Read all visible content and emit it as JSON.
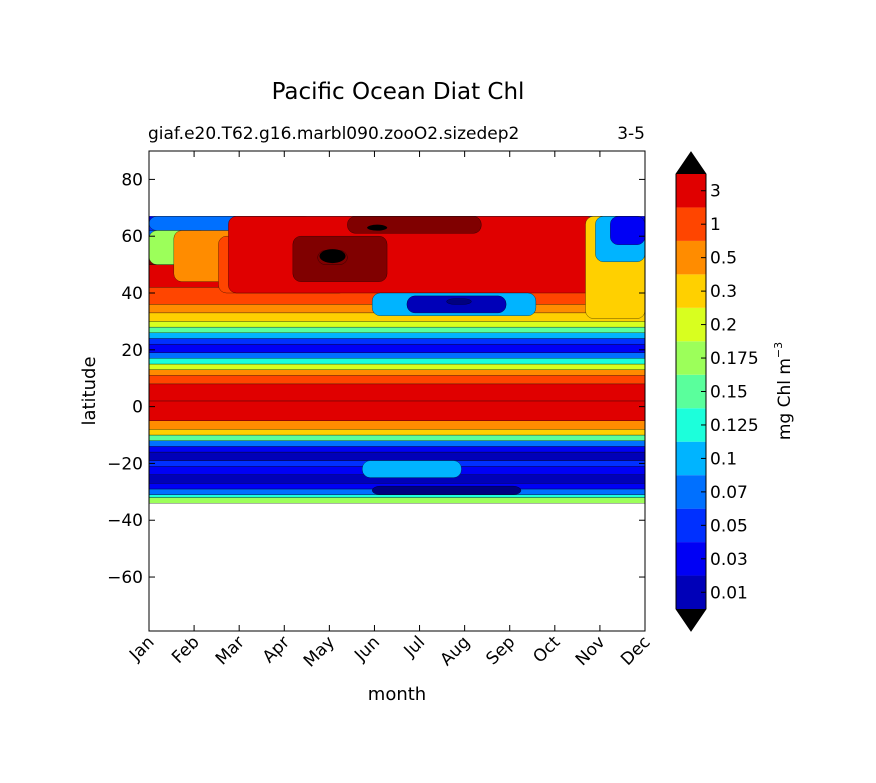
{
  "chart_data": {
    "type": "heatmap",
    "title": "Pacific Ocean Diat Chl",
    "subtitle_left": "giaf.e20.T62.g16.marbl090.zooO2.sizedep2",
    "subtitle_right": "3-5",
    "xlabel": "month",
    "ylabel": "latitude",
    "x_ticks": [
      "Jan",
      "Feb",
      "Mar",
      "Apr",
      "May",
      "Jun",
      "Jul",
      "Aug",
      "Sep",
      "Oct",
      "Nov",
      "Dec"
    ],
    "y_ticks": [
      80,
      60,
      40,
      20,
      0,
      -20,
      -40,
      -60
    ],
    "ylim": [
      -79,
      90
    ],
    "data_lat_range": [
      -34,
      67
    ],
    "colorbar": {
      "label": "mg Chl m",
      "label_exponent": "−3",
      "levels": [
        "0.01",
        "0.03",
        "0.05",
        "0.07",
        "0.1",
        "0.125",
        "0.15",
        "0.175",
        "0.2",
        "0.3",
        "0.5",
        "1",
        "3"
      ],
      "colors": [
        "#00007f",
        "#0000b8",
        "#0000f5",
        "#0030ff",
        "#0070ff",
        "#00b4ff",
        "#1cffdb",
        "#5aff9c",
        "#9cff5a",
        "#d8ff1f",
        "#ffd000",
        "#ff8c00",
        "#ff4500",
        "#e00000",
        "#800000"
      ],
      "extend": "both"
    },
    "annotations": {
      "min_color": "#00007f",
      "max_color": "#800000",
      "overshoot_color": "#000000"
    }
  }
}
